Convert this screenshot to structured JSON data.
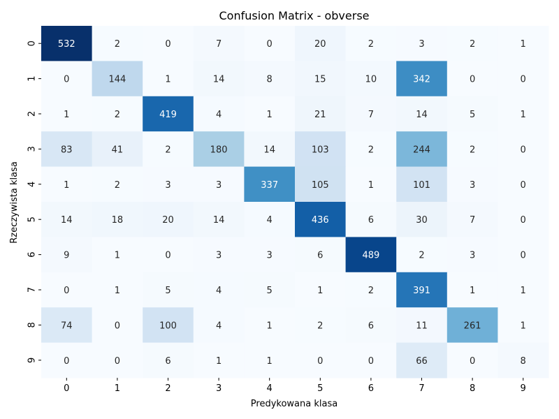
{
  "chart_data": {
    "type": "heatmap",
    "title": "Confusion Matrix - obverse",
    "xlabel": "Predykowana klasa",
    "ylabel": "Rzeczywista klasa",
    "x_categories": [
      "0",
      "1",
      "2",
      "3",
      "4",
      "5",
      "6",
      "7",
      "8",
      "9"
    ],
    "y_categories": [
      "0",
      "1",
      "2",
      "3",
      "4",
      "5",
      "6",
      "7",
      "8",
      "9"
    ],
    "values": [
      [
        532,
        2,
        0,
        7,
        0,
        20,
        2,
        3,
        2,
        1
      ],
      [
        0,
        144,
        1,
        14,
        8,
        15,
        10,
        342,
        0,
        0
      ],
      [
        1,
        2,
        419,
        4,
        1,
        21,
        7,
        14,
        5,
        1
      ],
      [
        83,
        41,
        2,
        180,
        14,
        103,
        2,
        244,
        2,
        0
      ],
      [
        1,
        2,
        3,
        3,
        337,
        105,
        1,
        101,
        3,
        0
      ],
      [
        14,
        18,
        20,
        14,
        4,
        436,
        6,
        30,
        7,
        0
      ],
      [
        9,
        1,
        0,
        3,
        3,
        6,
        489,
        2,
        3,
        0
      ],
      [
        0,
        1,
        5,
        4,
        5,
        1,
        2,
        391,
        1,
        1
      ],
      [
        74,
        0,
        100,
        4,
        1,
        2,
        6,
        11,
        261,
        1
      ],
      [
        0,
        0,
        6,
        1,
        1,
        0,
        0,
        66,
        0,
        8
      ]
    ],
    "value_range": [
      0,
      532
    ],
    "colormap": "Blues",
    "grid": false,
    "legend": "none"
  }
}
